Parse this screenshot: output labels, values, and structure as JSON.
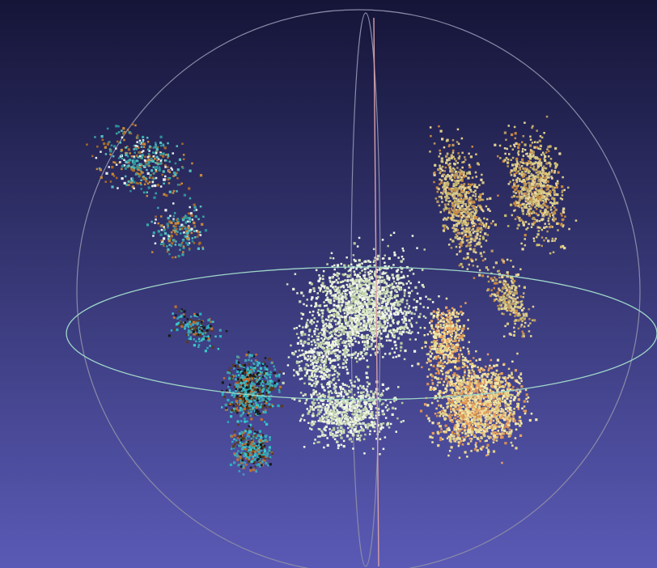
{
  "viewport": {
    "background_top": "#151538",
    "background_bottom": "#5a5ab6"
  },
  "trackball": {
    "outer_circle_color": "#8a8aa8",
    "horizontal_ring_color": "#9fd8c8",
    "vertical_ring_color": "#e0a0b0",
    "vertical_axis_color": "#d8a0a8"
  },
  "clouds": [
    {
      "name": "cloud-upper-left",
      "colors": [
        "#3aa8a8",
        "#2f8f9a",
        "#a86a2a",
        "#c98a3a",
        "#e8eef0",
        "#55c0c0"
      ]
    },
    {
      "name": "cloud-lower-left",
      "colors": [
        "#2ab0c0",
        "#3ac8c8",
        "#1a1a1a",
        "#5a3a1a",
        "#c07030",
        "#40a0b0"
      ]
    },
    {
      "name": "cloud-center",
      "colors": [
        "#e8f0d8",
        "#d8e8c0",
        "#f4f8ec",
        "#b8c8a0",
        "#c8d8b8",
        "#f0f4e0"
      ]
    },
    {
      "name": "cloud-upper-right",
      "colors": [
        "#d8c880",
        "#c8b870",
        "#e0d090",
        "#b89860",
        "#c88840",
        "#e8d8a0"
      ]
    },
    {
      "name": "cloud-lower-right",
      "colors": [
        "#f0e0a0",
        "#e8d890",
        "#e8a060",
        "#f4eab0",
        "#d89050",
        "#e0d088"
      ]
    }
  ]
}
